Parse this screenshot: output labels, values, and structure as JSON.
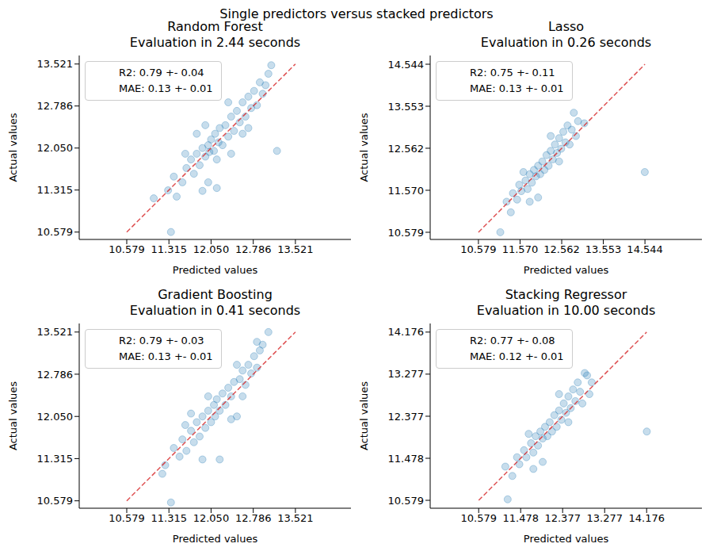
{
  "title": "Single predictors versus stacked predictors",
  "chart_data": [
    {
      "type": "scatter",
      "title": "Random Forest",
      "subtitle": "Evaluation in 2.44 seconds",
      "x_label": "Predicted values",
      "y_label": "Actual values",
      "annotations": [
        "R2: 0.79 +- 0.04",
        "MAE: 0.13 +- 0.01"
      ],
      "xlim": [
        9.75,
        14.49
      ],
      "ylim": [
        10.45,
        13.67
      ],
      "xticks": [
        10.579,
        11.315,
        {
          "value": 12.05,
          "label": "12.050"
        },
        12.786,
        13.521
      ],
      "yticks": [
        10.579,
        11.315,
        {
          "value": 12.05,
          "label": "12.050"
        },
        12.786,
        13.521
      ],
      "series": [
        {
          "type": "scatter",
          "color": "#1f77b4",
          "marker": "circle",
          "x": [
            11.35,
            11.05,
            11.3,
            11.4,
            11.45,
            11.55,
            11.62,
            11.7,
            11.75,
            11.8,
            11.85,
            11.9,
            11.95,
            12.0,
            12.02,
            12.05,
            12.1,
            12.12,
            12.15,
            12.18,
            12.2,
            12.25,
            12.3,
            12.35,
            12.4,
            12.45,
            12.5,
            12.55,
            12.6,
            12.65,
            12.7,
            12.75,
            12.8,
            12.85,
            12.9,
            12.95,
            13.05,
            13.1,
            13.2,
            12.15,
            11.9,
            12.0,
            12.6,
            12.35,
            11.6,
            11.8,
            12.4,
            11.95,
            12.7,
            13.0
          ],
          "values": [
            10.58,
            11.17,
            11.31,
            11.55,
            11.2,
            11.45,
            11.7,
            11.85,
            11.6,
            11.95,
            11.75,
            12.05,
            11.9,
            12.1,
            11.98,
            12.2,
            12.0,
            12.3,
            11.85,
            12.15,
            12.4,
            12.1,
            12.45,
            12.25,
            12.6,
            12.35,
            12.7,
            12.5,
            12.85,
            12.6,
            12.95,
            12.75,
            13.05,
            12.8,
            13.2,
            13.0,
            13.35,
            13.5,
            12.0,
            11.35,
            11.3,
            11.45,
            12.3,
            12.85,
            11.95,
            12.3,
            11.95,
            12.45,
            12.4,
            13.15
          ]
        },
        {
          "type": "line",
          "color": "#d62728",
          "line_style": "dashed",
          "x": [
            10.579,
            13.521
          ],
          "values": [
            10.579,
            13.521
          ]
        }
      ]
    },
    {
      "type": "scatter",
      "title": "Lasso",
      "subtitle": "Evaluation in 0.26 seconds",
      "x_label": "Predicted values",
      "y_label": "Actual values",
      "annotations": [
        "R2: 0.75 +- 0.11",
        "MAE: 0.13 +- 0.01"
      ],
      "xlim": [
        9.43,
        15.9
      ],
      "ylim": [
        10.41,
        14.75
      ],
      "xticks": [
        10.579,
        {
          "value": 11.57,
          "label": "11.570"
        },
        12.562,
        13.553,
        14.544
      ],
      "yticks": [
        10.579,
        {
          "value": 11.57,
          "label": "11.570"
        },
        12.562,
        13.553,
        14.544
      ],
      "series": [
        {
          "type": "scatter",
          "color": "#1f77b4",
          "marker": "circle",
          "x": [
            11.1,
            11.25,
            11.35,
            11.4,
            11.5,
            11.55,
            11.6,
            11.7,
            11.75,
            11.8,
            11.85,
            11.9,
            11.95,
            12.0,
            12.05,
            12.1,
            12.15,
            12.2,
            12.25,
            12.3,
            12.35,
            12.4,
            12.45,
            12.5,
            12.55,
            12.6,
            12.65,
            12.7,
            12.8,
            12.85,
            12.95,
            13.1,
            14.54,
            12.0,
            11.8,
            12.3,
            11.65,
            12.5,
            12.75,
            12.9
          ],
          "values": [
            10.58,
            11.3,
            11.05,
            11.5,
            11.35,
            11.7,
            11.55,
            11.8,
            11.6,
            11.95,
            11.75,
            12.05,
            11.9,
            12.15,
            11.95,
            12.25,
            12.05,
            12.4,
            12.15,
            12.5,
            12.3,
            12.65,
            12.45,
            12.8,
            12.55,
            12.95,
            12.7,
            13.1,
            13.0,
            13.4,
            13.2,
            13.15,
            12.0,
            11.4,
            11.3,
            12.85,
            12.0,
            12.25,
            12.65,
            12.85
          ]
        },
        {
          "type": "line",
          "color": "#d62728",
          "line_style": "dashed",
          "x": [
            10.579,
            14.544
          ],
          "values": [
            10.579,
            14.544
          ]
        }
      ]
    },
    {
      "type": "scatter",
      "title": "Gradient Boosting",
      "subtitle": "Evaluation in 0.41 seconds",
      "x_label": "Predicted values",
      "y_label": "Actual values",
      "annotations": [
        "R2: 0.79 +- 0.03",
        "MAE: 0.13 +- 0.01"
      ],
      "xlim": [
        9.75,
        14.49
      ],
      "ylim": [
        10.45,
        13.67
      ],
      "xticks": [
        10.579,
        11.315,
        {
          "value": 12.05,
          "label": "12.050"
        },
        12.786,
        13.521
      ],
      "yticks": [
        10.579,
        11.315,
        {
          "value": 12.05,
          "label": "12.050"
        },
        12.786,
        13.521
      ],
      "series": [
        {
          "type": "scatter",
          "color": "#1f77b4",
          "marker": "circle",
          "x": [
            11.35,
            11.2,
            11.25,
            11.4,
            11.5,
            11.55,
            11.62,
            11.7,
            11.75,
            11.8,
            11.85,
            11.9,
            11.95,
            12.0,
            12.05,
            12.1,
            12.12,
            12.15,
            12.2,
            12.25,
            12.3,
            12.35,
            12.4,
            12.45,
            12.5,
            12.55,
            12.6,
            12.65,
            12.7,
            12.75,
            12.8,
            12.85,
            12.9,
            12.95,
            13.05,
            12.5,
            12.2,
            11.9,
            11.7,
            12.6,
            12.4,
            12.85,
            11.6,
            12.0
          ],
          "values": [
            10.55,
            11.05,
            11.2,
            11.5,
            11.35,
            11.65,
            11.45,
            11.8,
            11.6,
            11.95,
            11.7,
            12.05,
            11.85,
            12.15,
            11.95,
            12.25,
            12.05,
            12.35,
            12.15,
            12.45,
            12.25,
            12.55,
            12.4,
            12.65,
            12.05,
            12.7,
            12.85,
            12.6,
            12.95,
            12.8,
            13.1,
            12.9,
            13.2,
            13.3,
            13.52,
            12.95,
            11.3,
            11.3,
            12.1,
            12.4,
            12.0,
            13.35,
            11.9,
            12.4
          ]
        },
        {
          "type": "line",
          "color": "#d62728",
          "line_style": "dashed",
          "x": [
            10.579,
            13.521
          ],
          "values": [
            10.579,
            13.521
          ]
        }
      ]
    },
    {
      "type": "scatter",
      "title": "Stacking Regressor",
      "subtitle": "Evaluation in 10.00 seconds",
      "x_label": "Predicted values",
      "y_label": "Actual values",
      "annotations": [
        "R2: 0.77 +- 0.08",
        "MAE: 0.12 +- 0.01"
      ],
      "xlim": [
        9.54,
        15.36
      ],
      "ylim": [
        10.41,
        14.36
      ],
      "xticks": [
        10.579,
        11.478,
        12.377,
        13.277,
        14.176
      ],
      "yticks": [
        10.579,
        11.478,
        12.377,
        13.277,
        14.176
      ],
      "series": [
        {
          "type": "scatter",
          "color": "#1f77b4",
          "marker": "circle",
          "x": [
            11.2,
            11.15,
            11.3,
            11.4,
            11.45,
            11.55,
            11.6,
            11.7,
            11.75,
            11.8,
            11.85,
            11.9,
            11.95,
            12.0,
            12.05,
            12.1,
            12.15,
            12.2,
            12.25,
            12.3,
            12.35,
            12.4,
            12.45,
            12.5,
            12.55,
            12.6,
            12.65,
            12.7,
            12.75,
            12.85,
            12.9,
            13.0,
            14.18,
            11.95,
            11.75,
            12.3,
            11.65,
            12.5,
            12.8,
            12.95
          ],
          "values": [
            10.6,
            11.3,
            11.1,
            11.5,
            11.35,
            11.65,
            11.5,
            11.8,
            11.6,
            11.95,
            11.75,
            12.05,
            11.9,
            12.15,
            11.95,
            12.25,
            12.05,
            12.4,
            12.15,
            12.5,
            12.3,
            12.65,
            12.45,
            12.8,
            12.55,
            12.95,
            12.7,
            13.1,
            12.9,
            13.3,
            13.25,
            13.1,
            12.05,
            11.4,
            11.25,
            12.85,
            12.0,
            12.25,
            12.65,
            12.85
          ]
        },
        {
          "type": "line",
          "color": "#d62728",
          "line_style": "dashed",
          "x": [
            10.579,
            14.176
          ],
          "values": [
            10.579,
            14.176
          ]
        }
      ]
    }
  ]
}
